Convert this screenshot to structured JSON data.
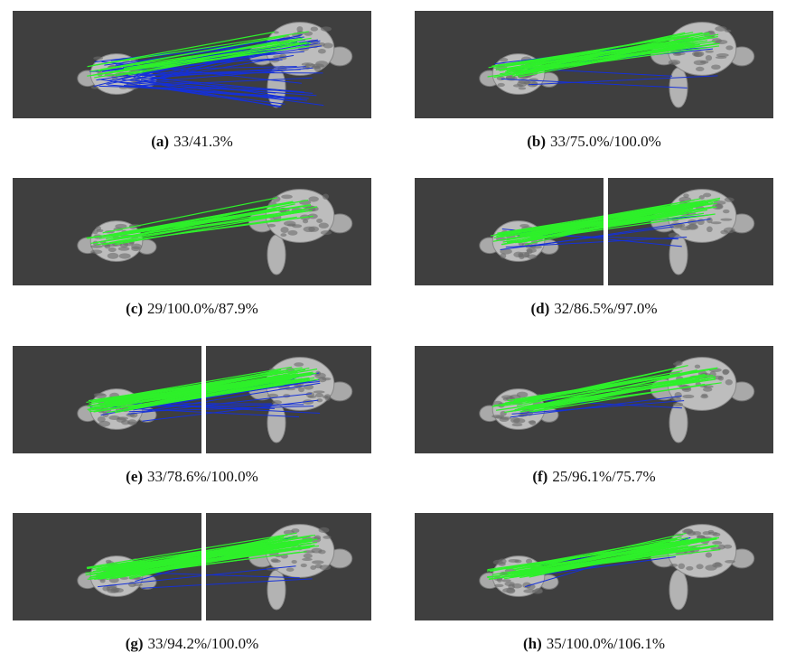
{
  "panels": [
    {
      "label": "(a)",
      "caption": "33/41.3%"
    },
    {
      "label": "(b)",
      "caption": "33/75.0%/100.0%"
    },
    {
      "label": "(c)",
      "caption": "29/100.0%/87.9%"
    },
    {
      "label": "(d)",
      "caption": "32/86.5%/97.0%"
    },
    {
      "label": "(e)",
      "caption": "33/78.6%/100.0%"
    },
    {
      "label": "(f)",
      "caption": "25/96.1%/75.7%"
    },
    {
      "label": "(g)",
      "caption": "33/94.2%/100.0%"
    },
    {
      "label": "(h)",
      "caption": "35/100.0%/106.1%"
    }
  ]
}
